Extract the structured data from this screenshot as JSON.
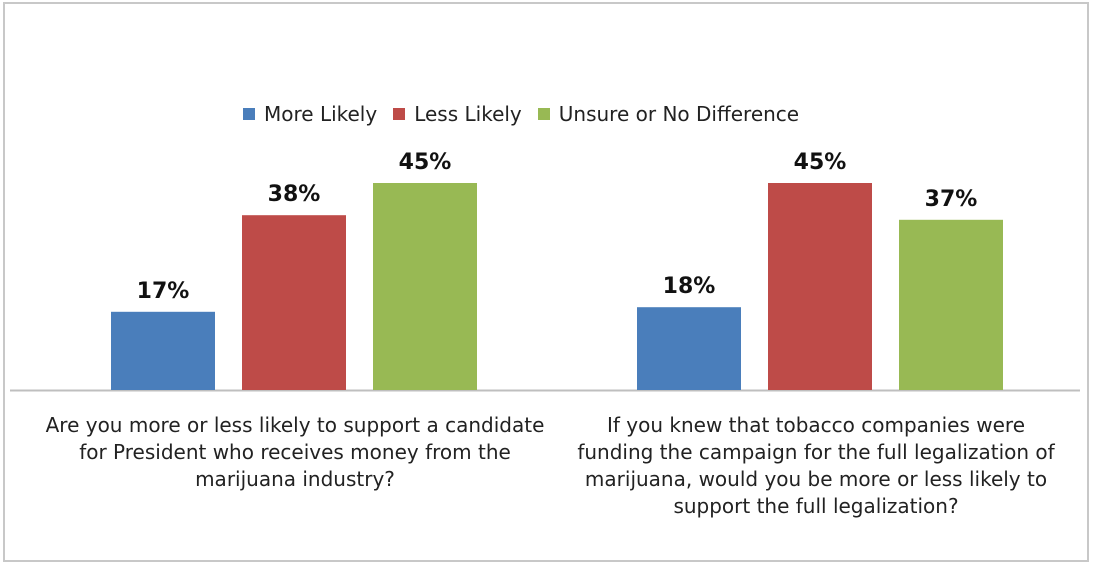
{
  "chart_data": {
    "type": "bar",
    "categories": [
      "Are you more or less likely to support a candidate for President who receives money from the marijuana industry?",
      "If you knew that tobacco companies were funding the campaign for the full legalization of marijuana, would you be more or less likely to support the full legalization?"
    ],
    "category_lines": [
      [
        "Are you more or less likely to support a candidate",
        "for President who receives money from the",
        "marijuana industry?"
      ],
      [
        "If you knew that tobacco companies were",
        "funding the campaign for the full legalization of",
        "marijuana, would you be more or less likely to",
        "support the full legalization?"
      ]
    ],
    "series": [
      {
        "name": "More Likely",
        "color": "#4a7ebb",
        "values": [
          17,
          18
        ]
      },
      {
        "name": "Less Likely",
        "color": "#be4b48",
        "values": [
          38,
          45
        ]
      },
      {
        "name": "Unsure or No Difference",
        "color": "#98b954",
        "values": [
          45,
          37
        ]
      }
    ],
    "value_suffix": "%",
    "ylim": [
      0,
      50
    ],
    "grid": false,
    "legend_position": "top"
  }
}
